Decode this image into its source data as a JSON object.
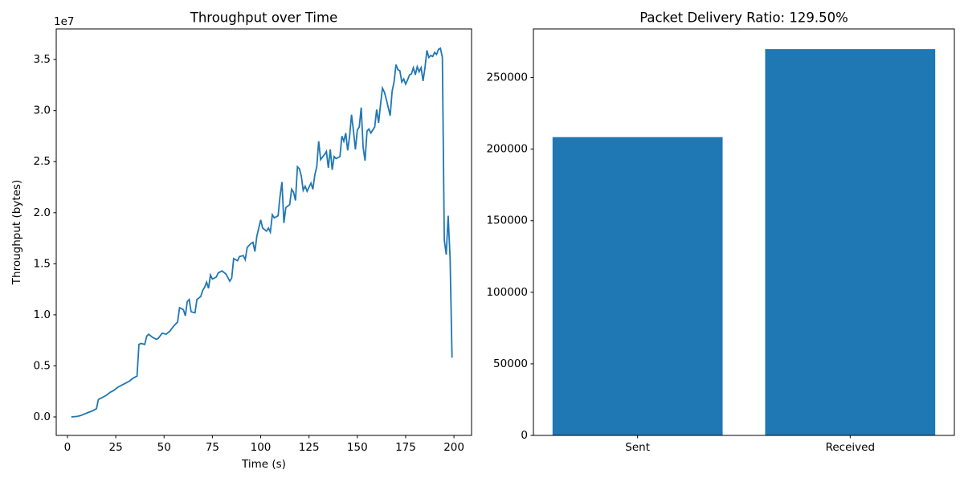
{
  "chart_data": [
    {
      "type": "line",
      "title": "Throughput over Time",
      "x_label": "Time (s)",
      "y_label": "Throughput (bytes)",
      "y_offset_label": "1e7",
      "xlim": [
        -5.8,
        209.1
      ],
      "xticks": [
        0,
        25,
        50,
        75,
        100,
        125,
        150,
        175,
        200
      ],
      "ylim": [
        -0.181,
        3.8
      ],
      "yticks": [
        {
          "value": 0,
          "label": "0.0"
        },
        0.5,
        {
          "value": 1,
          "label": "1.0"
        },
        1.5,
        {
          "value": 2,
          "label": "2.0"
        },
        2.5,
        {
          "value": 3,
          "label": "3.0"
        },
        3.5
      ],
      "grid": false,
      "x": [
        2,
        5,
        7,
        9,
        11,
        13,
        15,
        16,
        18,
        20,
        22,
        24,
        26,
        28,
        30,
        32,
        34,
        36,
        37,
        38,
        40,
        41,
        42,
        44,
        46,
        47,
        49,
        51,
        53,
        55,
        57,
        58,
        60,
        61,
        62,
        63,
        64,
        66,
        67,
        69,
        70,
        71,
        72,
        73,
        74,
        75,
        77,
        78,
        80,
        82,
        84,
        85,
        86,
        88,
        89,
        91,
        92,
        93,
        95,
        96,
        97,
        98,
        100,
        101,
        103,
        104,
        105,
        106,
        107,
        109,
        110,
        111,
        112,
        113,
        115,
        116,
        117,
        118,
        119,
        120,
        121,
        122,
        123,
        124,
        125,
        126,
        127,
        128,
        129,
        130,
        131,
        133,
        134,
        135,
        136,
        137,
        138,
        139,
        141,
        142,
        143,
        144,
        145,
        146,
        147,
        148,
        149,
        150,
        151,
        152,
        153,
        154,
        155,
        156,
        157,
        159,
        160,
        161,
        162,
        163,
        164,
        165,
        167,
        168,
        169,
        170,
        171,
        172,
        173,
        174,
        175,
        176,
        177,
        178,
        179,
        180,
        181,
        182,
        183,
        184,
        185,
        186,
        187,
        188,
        189,
        190,
        191,
        192,
        193,
        194,
        195,
        196,
        197,
        198,
        199
      ],
      "series": [
        {
          "color": "#1f77b4",
          "values": [
            0,
            0.005,
            0.015,
            0.03,
            0.045,
            0.06,
            0.08,
            0.17,
            0.19,
            0.21,
            0.24,
            0.26,
            0.29,
            0.31,
            0.33,
            0.35,
            0.38,
            0.4,
            0.71,
            0.72,
            0.71,
            0.79,
            0.81,
            0.78,
            0.76,
            0.77,
            0.82,
            0.81,
            0.84,
            0.89,
            0.93,
            1.07,
            1.05,
            0.99,
            1.13,
            1.15,
            1.03,
            1.02,
            1.15,
            1.18,
            1.24,
            1.27,
            1.32,
            1.26,
            1.39,
            1.35,
            1.37,
            1.41,
            1.43,
            1.4,
            1.33,
            1.36,
            1.55,
            1.53,
            1.57,
            1.58,
            1.54,
            1.66,
            1.7,
            1.71,
            1.62,
            1.77,
            1.93,
            1.85,
            1.82,
            1.85,
            1.81,
            1.98,
            1.95,
            1.97,
            2.16,
            2.3,
            1.9,
            2.05,
            2.08,
            2.23,
            2.2,
            2.12,
            2.45,
            2.43,
            2.36,
            2.22,
            2.26,
            2.21,
            2.25,
            2.29,
            2.23,
            2.37,
            2.45,
            2.7,
            2.52,
            2.57,
            2.6,
            2.44,
            2.62,
            2.42,
            2.55,
            2.53,
            2.55,
            2.75,
            2.7,
            2.78,
            2.61,
            2.75,
            2.96,
            2.8,
            2.62,
            2.81,
            2.84,
            3.03,
            2.64,
            2.51,
            2.8,
            2.82,
            2.78,
            2.84,
            3.01,
            2.88,
            3.06,
            3.22,
            3.18,
            3.11,
            2.95,
            3.19,
            3.28,
            3.45,
            3.4,
            3.39,
            3.28,
            3.31,
            3.26,
            3.3,
            3.35,
            3.36,
            3.42,
            3.35,
            3.43,
            3.38,
            3.42,
            3.29,
            3.42,
            3.59,
            3.52,
            3.54,
            3.53,
            3.57,
            3.55,
            3.6,
            3.61,
            3.52,
            1.73,
            1.59,
            1.97,
            1.55,
            0.58
          ]
        }
      ]
    },
    {
      "type": "bar",
      "title": "Packet Delivery Ratio: 129.50%",
      "categories": [
        "Sent",
        "Received"
      ],
      "values": [
        208400,
        269900
      ],
      "color": "#1f77b4",
      "ylim": [
        0,
        284000
      ],
      "yticks": [
        0,
        50000,
        100000,
        150000,
        200000,
        250000
      ],
      "grid": false
    }
  ]
}
